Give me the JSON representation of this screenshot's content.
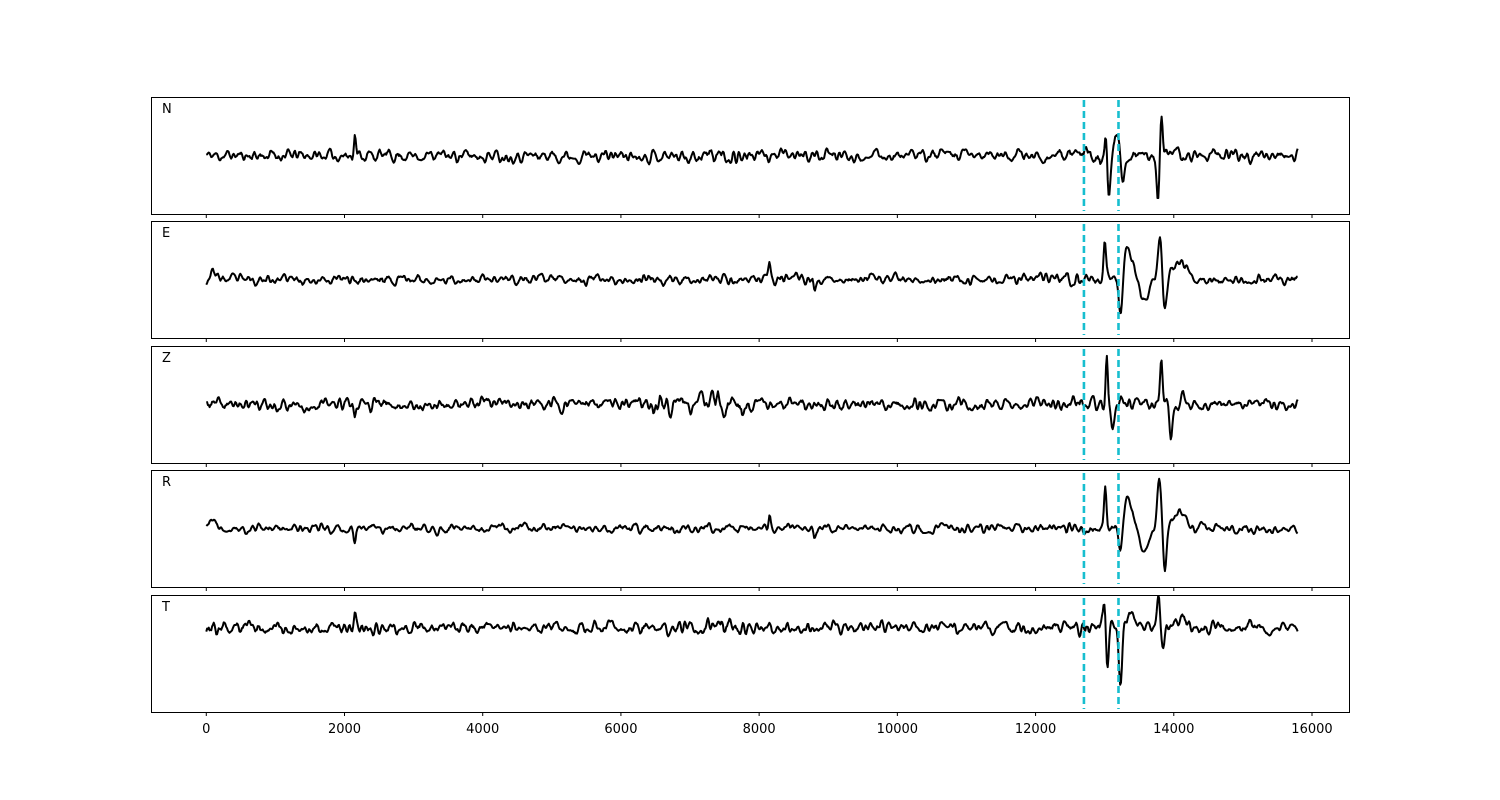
{
  "chart_data": {
    "type": "line",
    "xlim": [
      -800,
      16550
    ],
    "ylim": [
      -1,
      1
    ],
    "grid": false,
    "x_ticks": [
      0,
      2000,
      4000,
      6000,
      8000,
      10000,
      12000,
      14000,
      16000
    ],
    "x_tick_labels": [
      "0",
      "2000",
      "4000",
      "6000",
      "8000",
      "10000",
      "12000",
      "14000",
      "16000"
    ],
    "phase_markers": {
      "color": "#17becf",
      "style": "dashed",
      "x": [
        12700,
        13200
      ]
    },
    "trace_color": "#000000",
    "panels": [
      {
        "label": "N",
        "x_start": 0,
        "x_end": 15800,
        "baseline": 0.0,
        "seed": 11,
        "noise": 0.085,
        "noise_bump": [
          [
            7400,
            0.05
          ],
          [
            12900,
            0.05
          ]
        ],
        "features": [
          {
            "x": 2150,
            "amp": 0.38,
            "width": 22
          },
          {
            "x": 13020,
            "amp": 0.55,
            "width": 30
          },
          {
            "x": 13060,
            "amp": -0.85,
            "width": 32
          },
          {
            "x": 13180,
            "amp": 0.4,
            "width": 45
          },
          {
            "x": 13260,
            "amp": -0.4,
            "width": 45
          },
          {
            "x": 13820,
            "amp": 0.8,
            "width": 28
          },
          {
            "x": 13770,
            "amp": -0.85,
            "width": 28
          }
        ]
      },
      {
        "label": "E",
        "x_start": 0,
        "x_end": 15800,
        "baseline": 0.0,
        "seed": 23,
        "noise": 0.07,
        "noise_bump": [
          [
            12500,
            0.03
          ]
        ],
        "features": [
          {
            "x": 100,
            "amp": 0.15,
            "width": 60
          },
          {
            "x": 8150,
            "amp": 0.25,
            "width": 22
          },
          {
            "x": 8800,
            "amp": -0.25,
            "width": 22
          },
          {
            "x": 13000,
            "amp": 0.75,
            "width": 25
          },
          {
            "x": 13230,
            "amp": -0.8,
            "width": 40
          },
          {
            "x": 13330,
            "amp": 0.55,
            "width": 110
          },
          {
            "x": 13570,
            "amp": -0.4,
            "width": 90
          },
          {
            "x": 13800,
            "amp": 0.75,
            "width": 40
          },
          {
            "x": 13870,
            "amp": -0.55,
            "width": 40
          },
          {
            "x": 14080,
            "amp": 0.3,
            "width": 120
          }
        ]
      },
      {
        "label": "Z",
        "x_start": 0,
        "x_end": 15800,
        "baseline": 0.0,
        "seed": 37,
        "noise": 0.09,
        "noise_bump": [
          [
            7450,
            0.1
          ],
          [
            6500,
            0.05
          ],
          [
            12950,
            0.05
          ]
        ],
        "features": [
          {
            "x": 2150,
            "amp": -0.3,
            "width": 22
          },
          {
            "x": 7400,
            "amp": 0.35,
            "width": 30
          },
          {
            "x": 13030,
            "amp": 0.95,
            "width": 22
          },
          {
            "x": 13120,
            "amp": -0.3,
            "width": 40
          },
          {
            "x": 13820,
            "amp": 0.75,
            "width": 25
          },
          {
            "x": 13960,
            "amp": -0.55,
            "width": 30
          },
          {
            "x": 14130,
            "amp": 0.25,
            "width": 35
          }
        ]
      },
      {
        "label": "R",
        "x_start": 0,
        "x_end": 15800,
        "baseline": 0.0,
        "seed": 41,
        "noise": 0.065,
        "noise_bump": [
          [
            12500,
            0.03
          ]
        ],
        "features": [
          {
            "x": 100,
            "amp": 0.15,
            "width": 60
          },
          {
            "x": 2150,
            "amp": -0.25,
            "width": 22
          },
          {
            "x": 8150,
            "amp": 0.25,
            "width": 22
          },
          {
            "x": 8800,
            "amp": -0.25,
            "width": 22
          },
          {
            "x": 13010,
            "amp": 0.7,
            "width": 25
          },
          {
            "x": 13230,
            "amp": -0.6,
            "width": 40
          },
          {
            "x": 13330,
            "amp": 0.5,
            "width": 110
          },
          {
            "x": 13570,
            "amp": -0.4,
            "width": 90
          },
          {
            "x": 13790,
            "amp": 0.85,
            "width": 40
          },
          {
            "x": 13870,
            "amp": -0.7,
            "width": 35
          },
          {
            "x": 14080,
            "amp": 0.3,
            "width": 120
          }
        ]
      },
      {
        "label": "T",
        "x_start": 0,
        "x_end": 15800,
        "baseline": 0.45,
        "seed": 53,
        "noise": 0.085,
        "noise_bump": [
          [
            7450,
            0.05
          ],
          [
            12900,
            0.05
          ]
        ],
        "features": [
          {
            "x": 150,
            "amp": -0.25,
            "width": 25
          },
          {
            "x": 2150,
            "amp": 0.3,
            "width": 22
          },
          {
            "x": 13000,
            "amp": 0.5,
            "width": 28
          },
          {
            "x": 13040,
            "amp": -0.8,
            "width": 30
          },
          {
            "x": 13230,
            "amp": -1.0,
            "width": 35
          },
          {
            "x": 13370,
            "amp": 0.25,
            "width": 60
          },
          {
            "x": 13780,
            "amp": 0.55,
            "width": 30
          },
          {
            "x": 13850,
            "amp": -0.35,
            "width": 30
          },
          {
            "x": 14130,
            "amp": 0.2,
            "width": 80
          }
        ]
      }
    ]
  }
}
